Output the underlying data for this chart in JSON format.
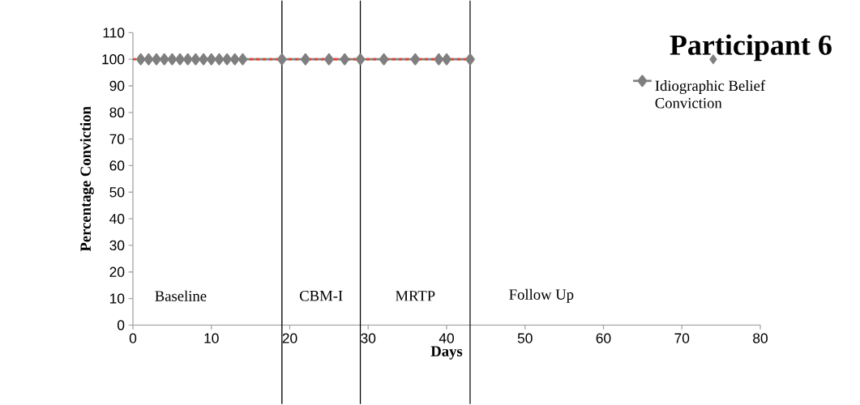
{
  "chart_data": {
    "type": "line",
    "title": "Participant 6",
    "xlabel": "Days",
    "ylabel": "Percentage Conviction",
    "xlim": [
      0,
      80
    ],
    "xticks": [
      0,
      10,
      20,
      30,
      40,
      50,
      60,
      70,
      80
    ],
    "ylim": [
      0,
      110
    ],
    "yticks": [
      0,
      10,
      20,
      30,
      40,
      50,
      60,
      70,
      80,
      90,
      100,
      110
    ],
    "marker": "diamond",
    "legend": "right",
    "grid": false,
    "series": [
      {
        "name": "Idiographic Belief Conviction",
        "color": "#7f7f7f",
        "x": [
          1,
          2,
          3,
          4,
          5,
          6,
          7,
          8,
          9,
          10,
          11,
          12,
          13,
          14,
          19,
          22,
          25,
          27,
          29,
          32,
          36,
          39,
          40,
          43
        ],
        "values": [
          100,
          100,
          100,
          100,
          100,
          100,
          100,
          100,
          100,
          100,
          100,
          100,
          100,
          100,
          100,
          100,
          100,
          100,
          100,
          100,
          100,
          100,
          100,
          100
        ]
      },
      {
        "type": "scatter",
        "color": "#7f7f7f",
        "x": [
          74
        ],
        "values": [
          100
        ]
      },
      {
        "type": "line",
        "color": "#e8412c",
        "line_style": "dashed",
        "marker": "none",
        "x": [
          0,
          43
        ],
        "values": [
          100,
          100
        ]
      }
    ],
    "ref_lines": [
      {
        "axis": "x",
        "value": 19,
        "color": "#000000"
      },
      {
        "axis": "x",
        "value": 29,
        "color": "#000000"
      },
      {
        "axis": "x",
        "value": 43,
        "color": "#000000"
      }
    ],
    "annotations": [
      "Baseline",
      "CBM-I",
      "MRTP",
      "Follow Up"
    ]
  }
}
